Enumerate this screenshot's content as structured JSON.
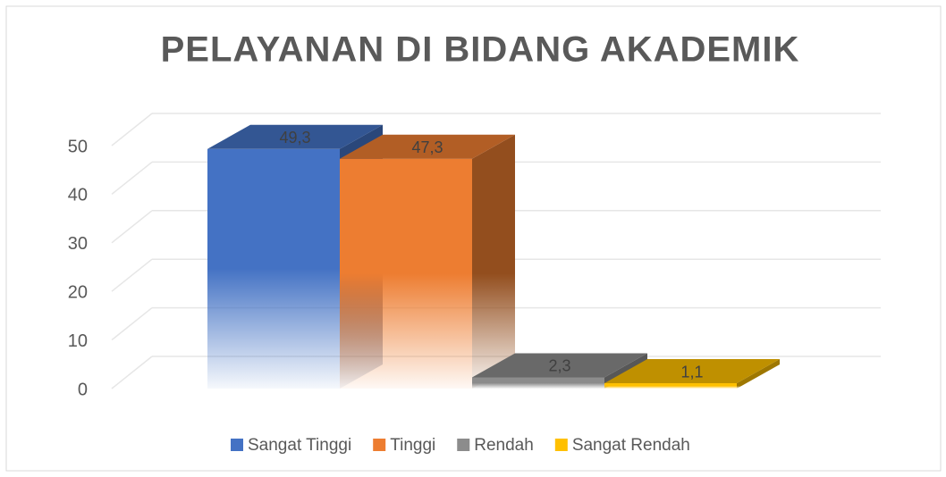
{
  "chart_data": {
    "type": "bar3d",
    "title": "PELAYANAN DI BIDANG AKADEMIK",
    "series": [
      {
        "name": "Sangat Tinggi",
        "color": "#4472c4",
        "values": [
          49.3
        ],
        "value_labels": [
          "49,3"
        ]
      },
      {
        "name": "Tinggi",
        "color": "#ed7d31",
        "values": [
          47.3
        ],
        "value_labels": [
          "47,3"
        ]
      },
      {
        "name": "Rendah",
        "color": "#8c8c8c",
        "values": [
          2.3
        ],
        "value_labels": [
          "2,3"
        ]
      },
      {
        "name": "Sangat Rendah",
        "color": "#ffc000",
        "values": [
          1.1
        ],
        "value_labels": [
          "1,1"
        ]
      }
    ],
    "ylim": [
      0,
      50
    ],
    "yticks": [
      0,
      10,
      20,
      30,
      40,
      50
    ],
    "grid": true,
    "legend": "bottom"
  }
}
